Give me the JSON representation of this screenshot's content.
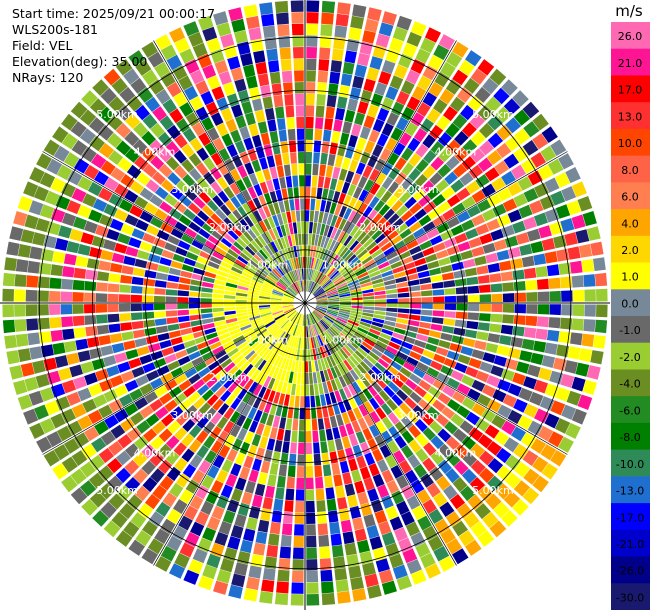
{
  "header": {
    "start_time": "Start time: 2025/09/21 00:00:17",
    "site": "WLS200s-181",
    "field": "Field: VEL",
    "elevation": "Elevation(deg): 35.00",
    "nrays": "NRays: 120"
  },
  "chart_data": {
    "type": "ppi",
    "field": "VEL",
    "units": "m/s",
    "nrays": 120,
    "elevation_deg": 35.0,
    "range_rings_km": [
      1.0,
      2.0,
      3.0,
      4.0,
      5.0
    ],
    "ring_labels": [
      "1.00km",
      "2.00km",
      "3.00km",
      "4.00km",
      "5.00km"
    ],
    "max_range_km": 5.7,
    "colorbar": {
      "label": "m/s",
      "ticks": [
        "26.0",
        "21.0",
        "17.0",
        "13.0",
        "10.0",
        "8.0",
        "6.0",
        "4.0",
        "2.0",
        "1.0",
        "0.0",
        "-1.0",
        "-2.0",
        "-4.0",
        "-6.0",
        "-8.0",
        "-10.0",
        "-13.0",
        "-17.0",
        "-21.0",
        "-26.0",
        "-30.0"
      ],
      "colors": [
        "#ff69b4",
        "#ff1493",
        "#ff0000",
        "#ff3030",
        "#ff4500",
        "#ff6347",
        "#ff7f50",
        "#ffa500",
        "#ffd700",
        "#ffff00",
        "#778899",
        "#696969",
        "#9acd32",
        "#6b8e23",
        "#228b22",
        "#008000",
        "#2e8b57",
        "#1e6fd0",
        "#0000ff",
        "#0000cd",
        "#00008b",
        "#191970"
      ]
    }
  }
}
